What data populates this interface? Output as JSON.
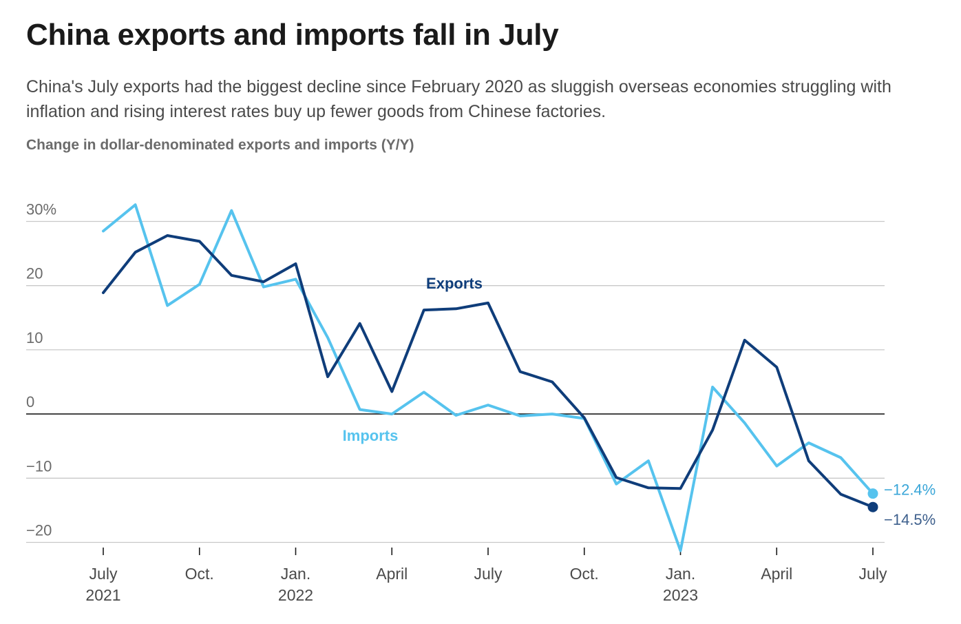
{
  "title": "China exports and imports fall in July",
  "subtitle": "China's July exports had the biggest decline since February 2020 as sluggish overseas economies struggling with inflation and rising interest rates buy up fewer goods from Chinese factories.",
  "chart_label": "Change in dollar-denominated exports and imports (Y/Y)",
  "chart_data": {
    "type": "line",
    "x": [
      "2021-07",
      "2021-08",
      "2021-09",
      "2021-10",
      "2021-11",
      "2021-12",
      "2022-01",
      "2022-02",
      "2022-03",
      "2022-04",
      "2022-05",
      "2022-06",
      "2022-07",
      "2022-08",
      "2022-09",
      "2022-10",
      "2022-11",
      "2022-12",
      "2023-01",
      "2023-02",
      "2023-03",
      "2023-04",
      "2023-05",
      "2023-06",
      "2023-07"
    ],
    "series": [
      {
        "name": "Exports",
        "color": "#0f3d7a",
        "values": [
          18.9,
          25.2,
          27.8,
          26.9,
          21.6,
          20.6,
          23.4,
          5.8,
          14.1,
          3.5,
          16.2,
          16.4,
          17.3,
          6.6,
          5.0,
          -0.6,
          -9.9,
          -11.5,
          -11.6,
          -2.5,
          11.5,
          7.3,
          -7.3,
          -12.5,
          -14.5
        ]
      },
      {
        "name": "Imports",
        "color": "#56c3ee",
        "values": [
          28.5,
          32.6,
          16.9,
          20.2,
          31.7,
          19.8,
          21.0,
          11.9,
          0.7,
          0.0,
          3.4,
          -0.2,
          1.4,
          -0.3,
          0.0,
          -0.7,
          -10.9,
          -7.3,
          -21.3,
          4.2,
          -1.4,
          -8.1,
          -4.5,
          -6.8,
          -12.4
        ]
      }
    ],
    "y_ticks": [
      {
        "value": 30,
        "label": "30%"
      },
      {
        "value": 20,
        "label": "20"
      },
      {
        "value": 10,
        "label": "10"
      },
      {
        "value": 0,
        "label": "0"
      },
      {
        "value": -10,
        "label": "−10"
      },
      {
        "value": -20,
        "label": "−20"
      }
    ],
    "ylim": [
      -20,
      30
    ],
    "x_ticks": [
      {
        "date": "2021-07",
        "line1": "July",
        "line2": "2021"
      },
      {
        "date": "2021-10",
        "line1": "Oct.",
        "line2": ""
      },
      {
        "date": "2022-01",
        "line1": "Jan.",
        "line2": "2022"
      },
      {
        "date": "2022-04",
        "line1": "April",
        "line2": ""
      },
      {
        "date": "2022-07",
        "line1": "July",
        "line2": ""
      },
      {
        "date": "2022-10",
        "line1": "Oct.",
        "line2": ""
      },
      {
        "date": "2023-01",
        "line1": "Jan.",
        "line2": "2023"
      },
      {
        "date": "2023-04",
        "line1": "April",
        "line2": ""
      },
      {
        "date": "2023-07",
        "line1": "July",
        "line2": ""
      }
    ],
    "annotations": {
      "exports_label": "Exports",
      "imports_label": "Imports",
      "exports_end": "−14.5%",
      "imports_end": "−12.4%"
    },
    "grid": true,
    "zero_line": true
  }
}
